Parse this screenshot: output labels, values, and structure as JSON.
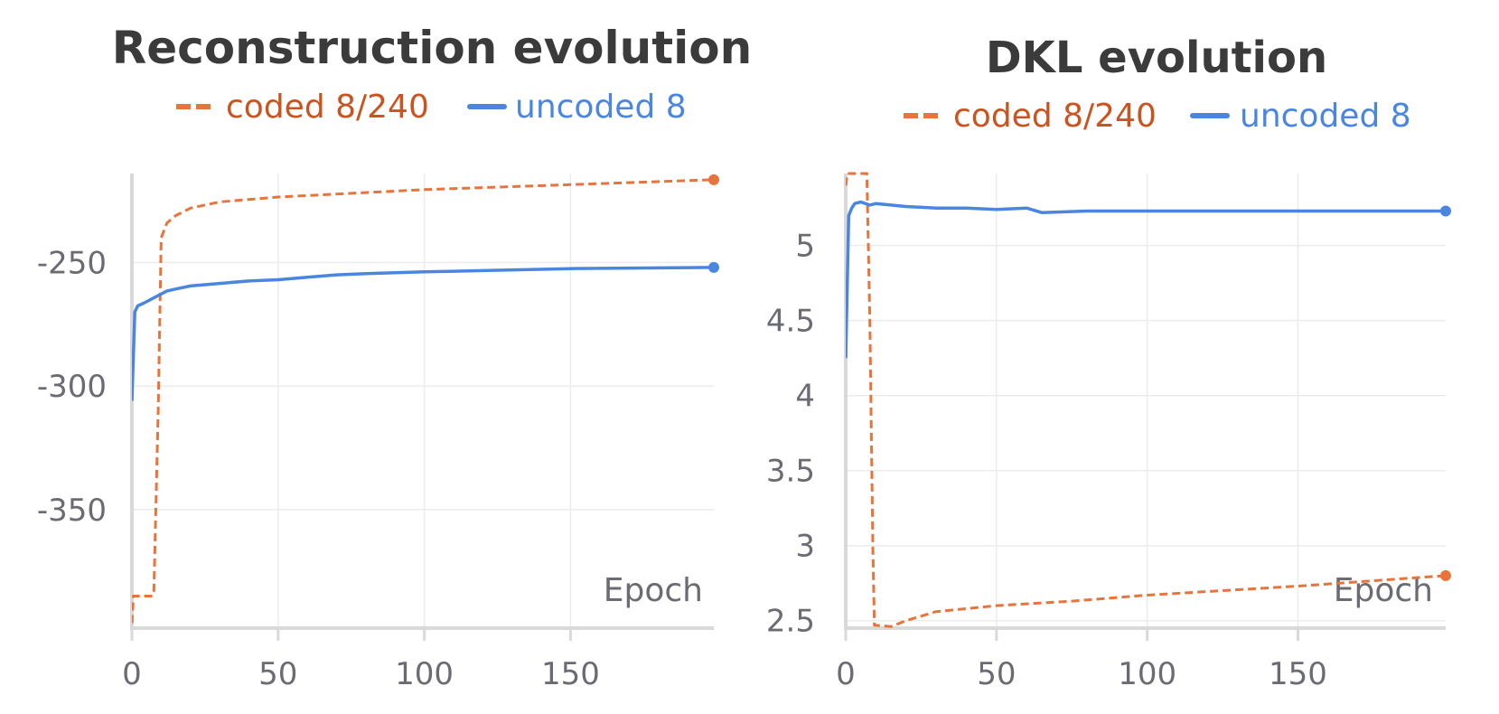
{
  "colors": {
    "coded": "#e8743b",
    "coded_text": "#c9541f",
    "uncoded": "#4a86e0",
    "grid": "#ececec",
    "axis": "#d9d9d9",
    "tick_text": "#6b6b73",
    "title": "#3b3b3b"
  },
  "chart_data": [
    {
      "type": "line",
      "title": "Reconstruction evolution",
      "xlabel": "Epoch",
      "ylabel": "",
      "xlim": [
        0,
        199
      ],
      "ylim": [
        -398,
        -214
      ],
      "xticks": [
        0,
        50,
        100,
        150
      ],
      "xtick_labels": [
        "0",
        "50",
        "100",
        "150"
      ],
      "yticks": [
        -250,
        -300,
        -350
      ],
      "ytick_labels": [
        "-250",
        "-300",
        "-350"
      ],
      "legend": "top-center",
      "series": [
        {
          "name": "coded 8/240",
          "style": "dashed",
          "x": [
            0,
            0.5,
            7,
            7.5,
            9,
            10,
            12,
            15,
            20,
            30,
            50,
            75,
            100,
            150,
            199
          ],
          "y": [
            -396,
            -385,
            -385,
            -383,
            -310,
            -240,
            -234,
            -231,
            -228,
            -225.5,
            -223.5,
            -222,
            -220.5,
            -218.5,
            -216.5
          ]
        },
        {
          "name": "uncoded 8",
          "style": "solid",
          "x": [
            0,
            1,
            2,
            4,
            8,
            12,
            16,
            20,
            30,
            40,
            50,
            60,
            70,
            80,
            100,
            120,
            150,
            199
          ],
          "y": [
            -306,
            -270,
            -267.5,
            -266.5,
            -264,
            -261.5,
            -260.5,
            -259.5,
            -258.5,
            -257.5,
            -257,
            -256,
            -255,
            -254.5,
            -253.8,
            -253.3,
            -252.5,
            -252
          ]
        }
      ]
    },
    {
      "type": "line",
      "title": "DKL evolution",
      "xlabel": "Epoch",
      "ylabel": "",
      "xlim": [
        0,
        199
      ],
      "ylim": [
        2.45,
        5.48
      ],
      "xticks": [
        0,
        50,
        100,
        150
      ],
      "xtick_labels": [
        "0",
        "50",
        "100",
        "150"
      ],
      "yticks": [
        2.5,
        3,
        3.5,
        4,
        4.5,
        5
      ],
      "ytick_labels": [
        "2.5",
        "3",
        "3.5",
        "4",
        "4.5",
        "5"
      ],
      "legend": "top-center",
      "series": [
        {
          "name": "coded 8/240",
          "style": "dashed",
          "x": [
            0,
            0.5,
            7,
            8,
            9,
            9.5,
            15,
            20,
            30,
            50,
            75,
            100,
            150,
            199
          ],
          "y": [
            5.4,
            5.48,
            5.48,
            4.5,
            3.0,
            2.47,
            2.46,
            2.5,
            2.56,
            2.6,
            2.63,
            2.67,
            2.73,
            2.8
          ]
        },
        {
          "name": "uncoded 8",
          "style": "solid",
          "x": [
            0,
            1,
            2,
            3,
            5,
            8,
            10,
            15,
            20,
            30,
            40,
            50,
            60,
            65,
            80,
            100,
            120,
            150,
            199
          ],
          "y": [
            4.25,
            5.2,
            5.25,
            5.28,
            5.29,
            5.27,
            5.28,
            5.27,
            5.26,
            5.25,
            5.25,
            5.24,
            5.25,
            5.22,
            5.23,
            5.23,
            5.23,
            5.23,
            5.23
          ]
        }
      ]
    }
  ]
}
